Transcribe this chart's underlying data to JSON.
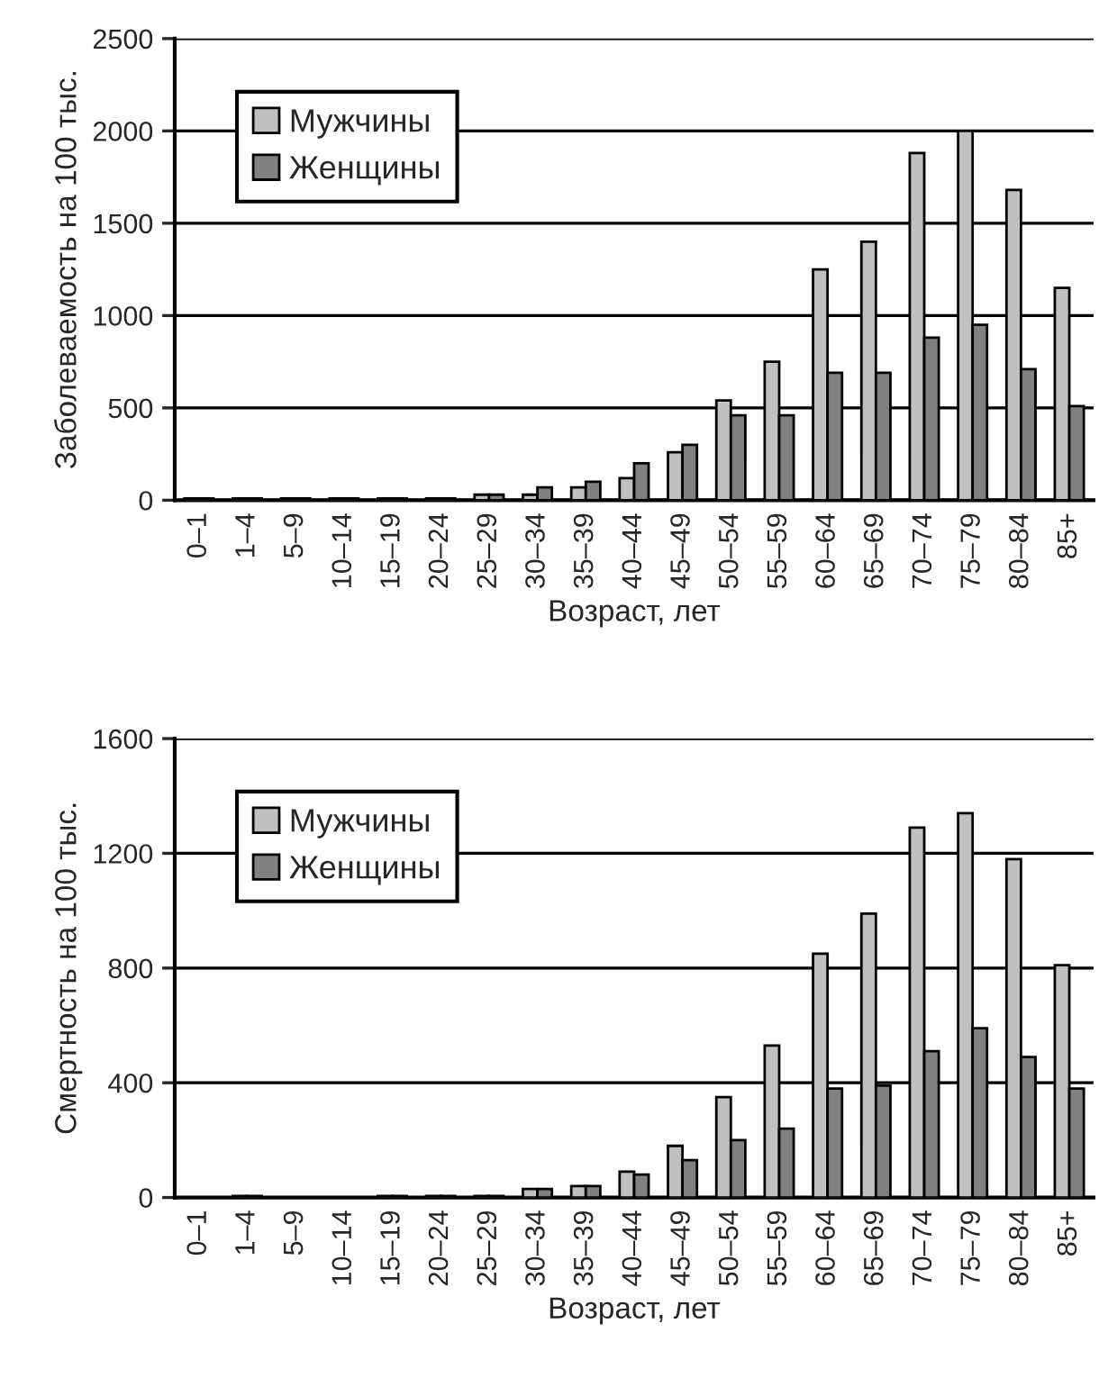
{
  "chart_data": [
    {
      "type": "bar",
      "xlabel": "Возраст, лет",
      "ylabel": "Заболеваемость на 100 тыс.",
      "categories": [
        "0–1",
        "1–4",
        "5–9",
        "10–14",
        "15–19",
        "20–24",
        "25–29",
        "30–34",
        "35–39",
        "40–44",
        "45–49",
        "50–54",
        "55–59",
        "60–64",
        "65–69",
        "70–74",
        "75–79",
        "80–84",
        "85+"
      ],
      "series": [
        {
          "name": "Мужчины",
          "color": "#c0c0c0",
          "values": [
            10,
            10,
            10,
            10,
            10,
            10,
            30,
            30,
            70,
            120,
            260,
            540,
            750,
            1250,
            1400,
            1880,
            2000,
            1680,
            1150
          ]
        },
        {
          "name": "Женщины",
          "color": "#808080",
          "values": [
            10,
            10,
            10,
            10,
            10,
            10,
            30,
            70,
            100,
            200,
            300,
            460,
            460,
            690,
            690,
            880,
            950,
            710,
            510
          ]
        }
      ],
      "ylim": [
        0,
        2500
      ],
      "yticks": [
        0,
        500,
        1000,
        1500,
        2000,
        2500
      ],
      "grid": "y",
      "legend": "top left"
    },
    {
      "type": "bar",
      "xlabel": "Возраст, лет",
      "ylabel": "Смертность на 100 тыс.",
      "categories": [
        "0–1",
        "1–4",
        "5–9",
        "10–14",
        "15–19",
        "20–24",
        "25–29",
        "30–34",
        "35–39",
        "40–44",
        "45–49",
        "50–54",
        "55–59",
        "60–64",
        "65–69",
        "70–74",
        "75–79",
        "80–84",
        "85+"
      ],
      "series": [
        {
          "name": "Мужчины",
          "color": "#c0c0c0",
          "values": [
            null,
            5,
            null,
            null,
            5,
            5,
            5,
            30,
            40,
            90,
            180,
            350,
            530,
            850,
            990,
            1290,
            1340,
            1180,
            810
          ]
        },
        {
          "name": "Женщины",
          "color": "#808080",
          "values": [
            null,
            5,
            null,
            null,
            5,
            5,
            5,
            30,
            40,
            80,
            130,
            200,
            240,
            380,
            390,
            510,
            590,
            490,
            380
          ]
        }
      ],
      "ylim": [
        0,
        1600
      ],
      "yticks": [
        0,
        400,
        800,
        1200,
        1600
      ],
      "grid": "y",
      "legend": "top left"
    }
  ]
}
